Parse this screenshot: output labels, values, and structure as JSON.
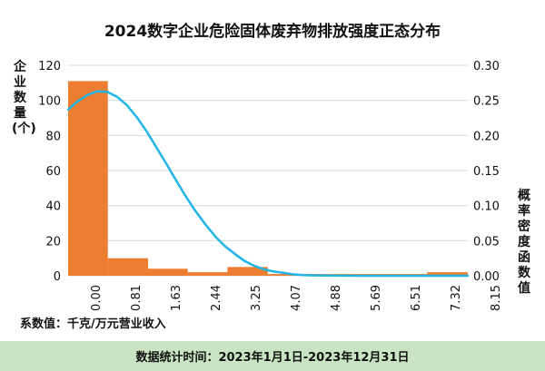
{
  "chart_data": {
    "type": "bar",
    "title": "2024数字企业危险固体废弃物排放强度正态分布",
    "ylabel": "企业数量(个)",
    "y2label": "概率密度函数值",
    "xlabel": "",
    "x_ticks": [
      "0.00",
      "0.81",
      "1.63",
      "2.44",
      "3.25",
      "4.07",
      "4.88",
      "5.69",
      "6.51",
      "7.32",
      "8.15"
    ],
    "ylim": [
      0,
      120
    ],
    "y_ticks": [
      "0",
      "20",
      "40",
      "60",
      "80",
      "100",
      "120"
    ],
    "y2lim": [
      0,
      0.3
    ],
    "y2_ticks": [
      "0.00",
      "0.05",
      "0.10",
      "0.15",
      "0.20",
      "0.25",
      "0.30"
    ],
    "xlim": [
      0,
      8.15
    ],
    "grid": true,
    "bar_color": "#ed7d31",
    "curve_color": "#1fb5e6",
    "series": [
      {
        "type": "bar",
        "bins": [
          [
            0.0,
            0.81
          ],
          [
            0.81,
            1.63
          ],
          [
            1.63,
            2.44
          ],
          [
            2.44,
            3.25
          ],
          [
            3.25,
            4.07
          ],
          [
            4.07,
            4.88
          ],
          [
            4.88,
            5.69
          ],
          [
            5.69,
            6.51
          ],
          [
            6.51,
            7.32
          ],
          [
            7.32,
            8.15
          ]
        ],
        "values": [
          111,
          10,
          4,
          2,
          5,
          1,
          1,
          1,
          1,
          2
        ]
      },
      {
        "type": "line",
        "x": [
          0.0,
          0.2,
          0.4,
          0.6,
          0.8,
          1.0,
          1.2,
          1.4,
          1.6,
          1.8,
          2.0,
          2.2,
          2.4,
          2.6,
          2.8,
          3.0,
          3.2,
          3.4,
          3.6,
          3.8,
          4.0,
          4.2,
          4.4,
          4.6,
          4.8,
          5.0,
          5.2,
          5.5,
          6.0,
          6.5,
          7.0,
          7.5,
          8.15
        ],
        "y": [
          0.237,
          0.249,
          0.258,
          0.263,
          0.262,
          0.255,
          0.243,
          0.226,
          0.206,
          0.183,
          0.16,
          0.136,
          0.113,
          0.092,
          0.073,
          0.056,
          0.042,
          0.031,
          0.021,
          0.014,
          0.009,
          0.006,
          0.004,
          0.002,
          0.001,
          0.0005,
          0.0002,
          0.0001,
          0,
          0,
          0,
          0,
          0
        ]
      }
    ]
  },
  "x_axis_note": "系数值：千克/万元营业收入",
  "footer": "数据统计时间：2023年1月1日-2023年12月31日"
}
